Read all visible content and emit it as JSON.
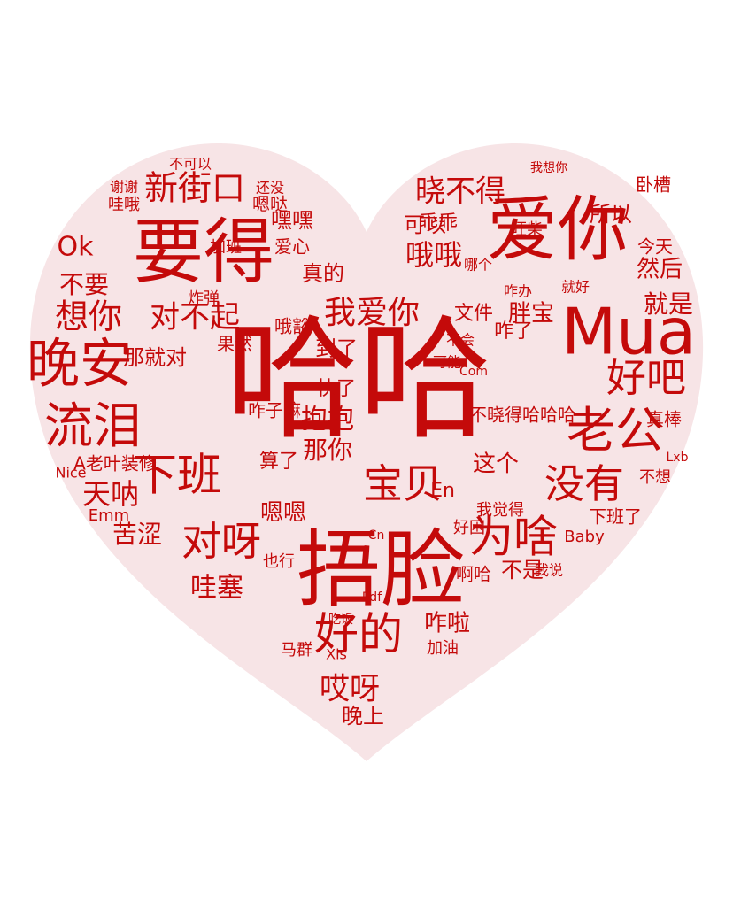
{
  "colors": {
    "text": "#c40a0a",
    "heart_fill": "#f7e4e6",
    "background": "#ffffff"
  },
  "words": [
    "哈哈",
    "捂脸",
    "爱你",
    "要得",
    "Mua",
    "晚安",
    "流泪",
    "老公",
    "好吧",
    "新街口",
    "晓不得",
    "好的",
    "为啥",
    "没有",
    "对呀",
    "下班",
    "宝贝",
    "哦哦",
    "我爱你",
    "想你",
    "就是",
    "然后",
    "可以",
    "真的",
    "抱抱",
    "乖乖",
    "不要",
    "所以",
    "对不起",
    "胖宝",
    "天呐",
    "哇塞",
    "苦涩",
    "这个",
    "那你",
    "咋啦",
    "哎呀",
    "嗯嗯",
    "文件",
    "到了",
    "快了",
    "咋了",
    "晚上",
    "不晓得哈哈哈",
    "不是",
    "Ok",
    "我觉得",
    "咋子嘛",
    "啊哈",
    "加油",
    "那就对",
    "果然",
    "算了",
    "En",
    "A老叶装修",
    "嘿嘿",
    "爱心",
    "嗯哒",
    "卧槽",
    "今天",
    "旺柴",
    "可能",
    "不会",
    "哦豁",
    "真棒",
    "Baby",
    "马群",
    "也行",
    "吃饭",
    "Pdf",
    "下班了",
    "好困",
    "不想",
    "我说",
    "Nice",
    "Emm",
    "Xls",
    "Cn",
    "Com",
    "Lxb",
    "谢谢",
    "哇哦",
    "炸弹",
    "加班",
    "还没",
    "不可以",
    "我想你",
    "咋办",
    "哪个",
    "就好"
  ]
}
